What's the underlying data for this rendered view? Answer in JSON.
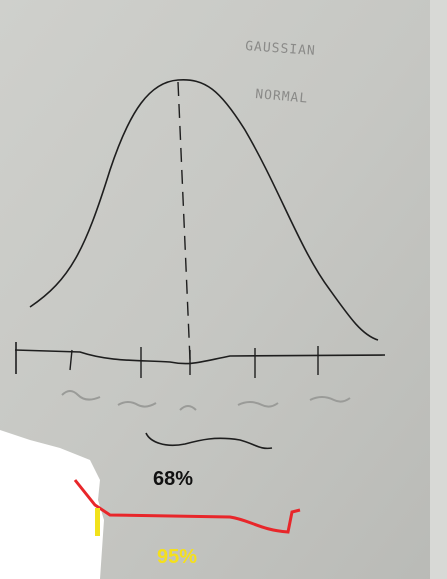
{
  "notes": {
    "line1": "GAUSSIAN",
    "line2": "NORMAL"
  },
  "labels": {
    "inner": "68%",
    "outer": "95%"
  }
}
